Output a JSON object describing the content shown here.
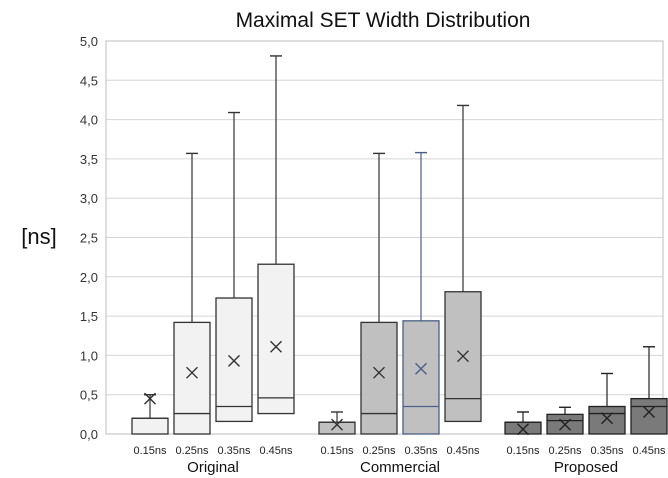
{
  "chart_data": {
    "type": "box",
    "title": "Maximal SET Width Distribution",
    "ylabel": "[ns]",
    "ylim": [
      0,
      5
    ],
    "yticks": [
      "0,0",
      "0,5",
      "1,0",
      "1,5",
      "2,0",
      "2,5",
      "3,0",
      "3,5",
      "4,0",
      "4,5",
      "5,0"
    ],
    "grid": true,
    "groups": [
      {
        "name": "Original",
        "fill": "#f2f2f2",
        "stroke": "#333333",
        "boxes": [
          {
            "label": "0.15ns",
            "min": 0,
            "q1": 0,
            "median": 0.2,
            "q3": 0.2,
            "max": 0.5,
            "mean": 0.45
          },
          {
            "label": "0.25ns",
            "min": 0,
            "q1": 0,
            "median": 0.26,
            "q3": 1.42,
            "max": 3.57,
            "mean": 0.78
          },
          {
            "label": "0.35ns",
            "min": 0,
            "q1": 0.16,
            "median": 0.35,
            "q3": 1.73,
            "max": 4.09,
            "mean": 0.93
          },
          {
            "label": "0.45ns",
            "min": 0,
            "q1": 0.26,
            "median": 0.46,
            "q3": 2.16,
            "max": 4.81,
            "mean": 1.11
          }
        ]
      },
      {
        "name": "Commercial",
        "fill": "#c0c0c0",
        "stroke": "#333333",
        "boxes": [
          {
            "label": "0.15ns",
            "min": 0,
            "q1": 0,
            "median": 0.15,
            "q3": 0.15,
            "max": 0.28,
            "mean": 0.12
          },
          {
            "label": "0.25ns",
            "min": 0,
            "q1": 0,
            "median": 0.26,
            "q3": 1.42,
            "max": 3.57,
            "mean": 0.78
          },
          {
            "label": "0.35ns",
            "min": 0,
            "q1": 0,
            "median": 0.35,
            "q3": 1.44,
            "max": 3.58,
            "mean": 0.83,
            "stroke": "#4a5f86"
          },
          {
            "label": "0.45ns",
            "min": 0,
            "q1": 0.16,
            "median": 0.45,
            "q3": 1.81,
            "max": 4.18,
            "mean": 0.99
          }
        ]
      },
      {
        "name": "Proposed",
        "fill": "#7a7a7a",
        "stroke": "#222222",
        "boxes": [
          {
            "label": "0.15ns",
            "min": 0,
            "q1": 0,
            "median": 0.15,
            "q3": 0.15,
            "max": 0.28,
            "mean": 0.06
          },
          {
            "label": "0.25ns",
            "min": 0,
            "q1": 0,
            "median": 0.17,
            "q3": 0.25,
            "max": 0.34,
            "mean": 0.12
          },
          {
            "label": "0.35ns",
            "min": 0,
            "q1": 0,
            "median": 0.26,
            "q3": 0.35,
            "max": 0.77,
            "mean": 0.2
          },
          {
            "label": "0.45ns",
            "min": 0,
            "q1": 0,
            "median": 0.35,
            "q3": 0.45,
            "max": 1.11,
            "mean": 0.28
          }
        ]
      }
    ]
  }
}
